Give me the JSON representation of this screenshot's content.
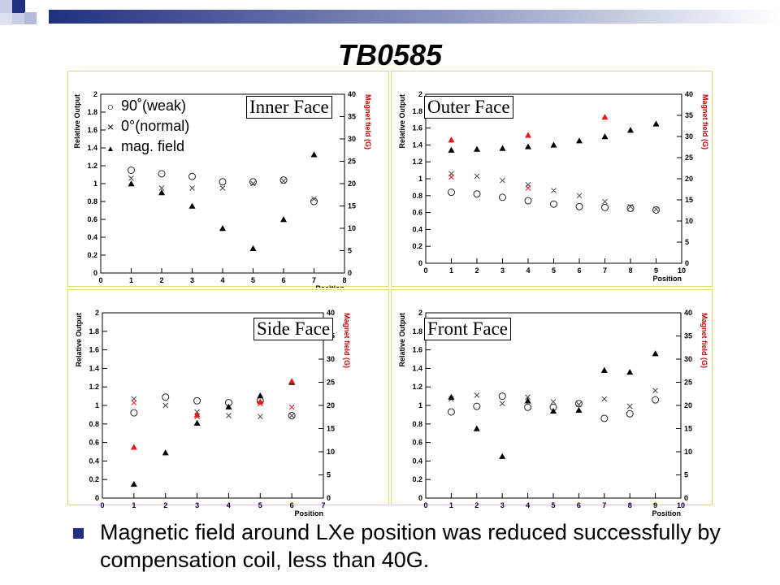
{
  "title": "TB0585",
  "legend": [
    {
      "symbol": "○",
      "label": "90˚(weak)"
    },
    {
      "symbol": "×",
      "label": "0°(normal)"
    },
    {
      "symbol": "▲",
      "label": "mag. field"
    }
  ],
  "bullet": "Magnetic field  around LXe position was reduced successfully by compensation coil, less than 40G.",
  "colors": {
    "weak": "#222222",
    "normal": "#444444",
    "field": "#000000",
    "red": "#e8141c",
    "right_axis": "#cc0000",
    "frame": "#e0d870",
    "bullet": "#1f3080"
  },
  "chart_data": [
    {
      "type": "scatter",
      "face": "Inner Face",
      "xlabel": "Position",
      "ylabel": "Relative Output",
      "y2label": "Magnet field (G)",
      "xlim": [
        0,
        8
      ],
      "ylim": [
        0,
        2
      ],
      "y2lim": [
        0,
        40
      ],
      "xticks": [
        0,
        1,
        2,
        3,
        4,
        5,
        6,
        7,
        8
      ],
      "yticks": [
        0,
        0.2,
        0.4,
        0.6,
        0.8,
        1,
        1.2,
        1.4,
        1.6,
        1.8,
        2
      ],
      "y2ticks": [
        0,
        5,
        10,
        15,
        20,
        25,
        30,
        35,
        40
      ],
      "series": [
        {
          "key": "weak",
          "marker": "circle",
          "x": [
            1,
            2,
            3,
            4,
            5,
            6,
            7
          ],
          "y": [
            1.15,
            1.11,
            1.08,
            1.02,
            1.02,
            1.04,
            0.8
          ]
        },
        {
          "key": "normal",
          "marker": "cross",
          "x": [
            1,
            2,
            3,
            4,
            5,
            6,
            7
          ],
          "y": [
            1.06,
            0.95,
            0.95,
            0.95,
            1.0,
            1.03,
            0.83
          ]
        },
        {
          "key": "field",
          "marker": "triangle",
          "x": [
            1,
            2,
            3,
            4,
            5,
            6,
            7
          ],
          "y": [
            20,
            18,
            15,
            10,
            5.5,
            12,
            26.5
          ]
        },
        {
          "key": "field_red",
          "marker": "triangle-red",
          "x": [],
          "y": []
        }
      ]
    },
    {
      "type": "scatter",
      "face": "Outer Face",
      "xlabel": "Position",
      "ylabel": "Relative Output",
      "y2label": "Magnet field (G)",
      "xlim": [
        0,
        10
      ],
      "ylim": [
        0,
        2
      ],
      "y2lim": [
        0,
        40
      ],
      "xticks": [
        0,
        1,
        2,
        3,
        4,
        5,
        6,
        7,
        8,
        9,
        10
      ],
      "yticks": [
        0,
        0.2,
        0.4,
        0.6,
        0.8,
        1,
        1.2,
        1.4,
        1.6,
        1.8,
        2
      ],
      "y2ticks": [
        0,
        5,
        10,
        15,
        20,
        25,
        30,
        35,
        40
      ],
      "series": [
        {
          "key": "weak",
          "marker": "circle",
          "x": [
            1,
            2,
            3,
            4,
            5,
            6,
            7,
            8,
            9
          ],
          "y": [
            0.84,
            0.82,
            0.78,
            0.74,
            0.7,
            0.67,
            0.66,
            0.65,
            0.63
          ]
        },
        {
          "key": "normal",
          "marker": "cross",
          "x": [
            1,
            2,
            3,
            4,
            5,
            6,
            7,
            8,
            9
          ],
          "y": [
            1.06,
            1.03,
            0.98,
            0.93,
            0.86,
            0.8,
            0.73,
            0.67,
            0.64
          ]
        },
        {
          "key": "normal_red",
          "marker": "cross-red",
          "x": [
            1,
            4
          ],
          "y": [
            1.02,
            0.89
          ]
        },
        {
          "key": "field",
          "marker": "triangle",
          "x": [
            1,
            2,
            3,
            4,
            5,
            6,
            7,
            8,
            9
          ],
          "y": [
            26.8,
            27,
            27.2,
            27.6,
            28,
            29,
            30,
            31.5,
            33
          ]
        },
        {
          "key": "field_red",
          "marker": "triangle-red",
          "x": [
            1,
            4,
            7
          ],
          "y": [
            29.2,
            30.3,
            34.6
          ]
        }
      ]
    },
    {
      "type": "scatter",
      "face": "Side Face",
      "xlabel": "Position",
      "ylabel": "Relative Output",
      "y2label": "Magnet field (G)",
      "xlim": [
        0,
        7
      ],
      "ylim": [
        0,
        2
      ],
      "y2lim": [
        0,
        40
      ],
      "xticks": [
        0,
        1,
        2,
        3,
        4,
        5,
        6,
        7
      ],
      "yticks": [
        0,
        0.2,
        0.4,
        0.6,
        0.8,
        1,
        1.2,
        1.4,
        1.6,
        1.8,
        2
      ],
      "y2ticks": [
        0,
        5,
        10,
        15,
        20,
        25,
        30,
        35,
        40
      ],
      "series": [
        {
          "key": "weak",
          "marker": "circle",
          "x": [
            1,
            2,
            3,
            4,
            5,
            6
          ],
          "y": [
            0.92,
            1.09,
            1.05,
            1.03,
            1.05,
            0.89
          ]
        },
        {
          "key": "normal",
          "marker": "cross",
          "x": [
            1,
            2,
            3,
            4,
            5,
            6
          ],
          "y": [
            1.07,
            1.0,
            0.93,
            0.89,
            0.88,
            0.89
          ]
        },
        {
          "key": "normal_red",
          "marker": "cross-red",
          "x": [
            1,
            3,
            5,
            6
          ],
          "y": [
            1.03,
            0.88,
            1.02,
            0.98
          ]
        },
        {
          "key": "field",
          "marker": "triangle",
          "x": [
            1,
            2,
            3,
            4,
            5,
            6
          ],
          "y": [
            3,
            9.8,
            16.2,
            19.7,
            22.1,
            25
          ]
        },
        {
          "key": "field_red",
          "marker": "triangle-red",
          "x": [
            1,
            3,
            5,
            6
          ],
          "y": [
            11,
            18,
            20.8,
            25.2
          ]
        }
      ]
    },
    {
      "type": "scatter",
      "face": "Front Face",
      "xlabel": "Position",
      "ylabel": "Relative Output",
      "y2label": "Magnet field (G)",
      "xlim": [
        0,
        10
      ],
      "ylim": [
        0,
        2
      ],
      "y2lim": [
        0,
        40
      ],
      "xticks": [
        0,
        1,
        2,
        3,
        4,
        5,
        6,
        7,
        8,
        9,
        10
      ],
      "yticks": [
        0,
        0.2,
        0.4,
        0.6,
        0.8,
        1,
        1.2,
        1.4,
        1.6,
        1.8,
        2
      ],
      "y2ticks": [
        0,
        5,
        10,
        15,
        20,
        25,
        30,
        35,
        40
      ],
      "series": [
        {
          "key": "weak",
          "marker": "circle",
          "x": [
            1,
            2,
            3,
            4,
            5,
            6,
            7,
            8,
            9
          ],
          "y": [
            0.93,
            0.99,
            1.1,
            0.98,
            0.98,
            1.02,
            0.86,
            0.91,
            1.06
          ]
        },
        {
          "key": "normal",
          "marker": "cross",
          "x": [
            1,
            2,
            3,
            4,
            5,
            6,
            7,
            8,
            9
          ],
          "y": [
            1.07,
            1.11,
            1.02,
            1.09,
            1.04,
            1.01,
            1.07,
            0.99,
            1.16
          ]
        },
        {
          "key": "field",
          "marker": "triangle",
          "x": [
            1,
            2,
            3,
            4,
            5,
            6,
            7,
            8,
            9
          ],
          "y": [
            21.8,
            15,
            9,
            21,
            18.8,
            19,
            27.6,
            27.2,
            31.2
          ]
        },
        {
          "key": "field_red",
          "marker": "triangle-red",
          "x": [],
          "y": []
        }
      ]
    }
  ]
}
